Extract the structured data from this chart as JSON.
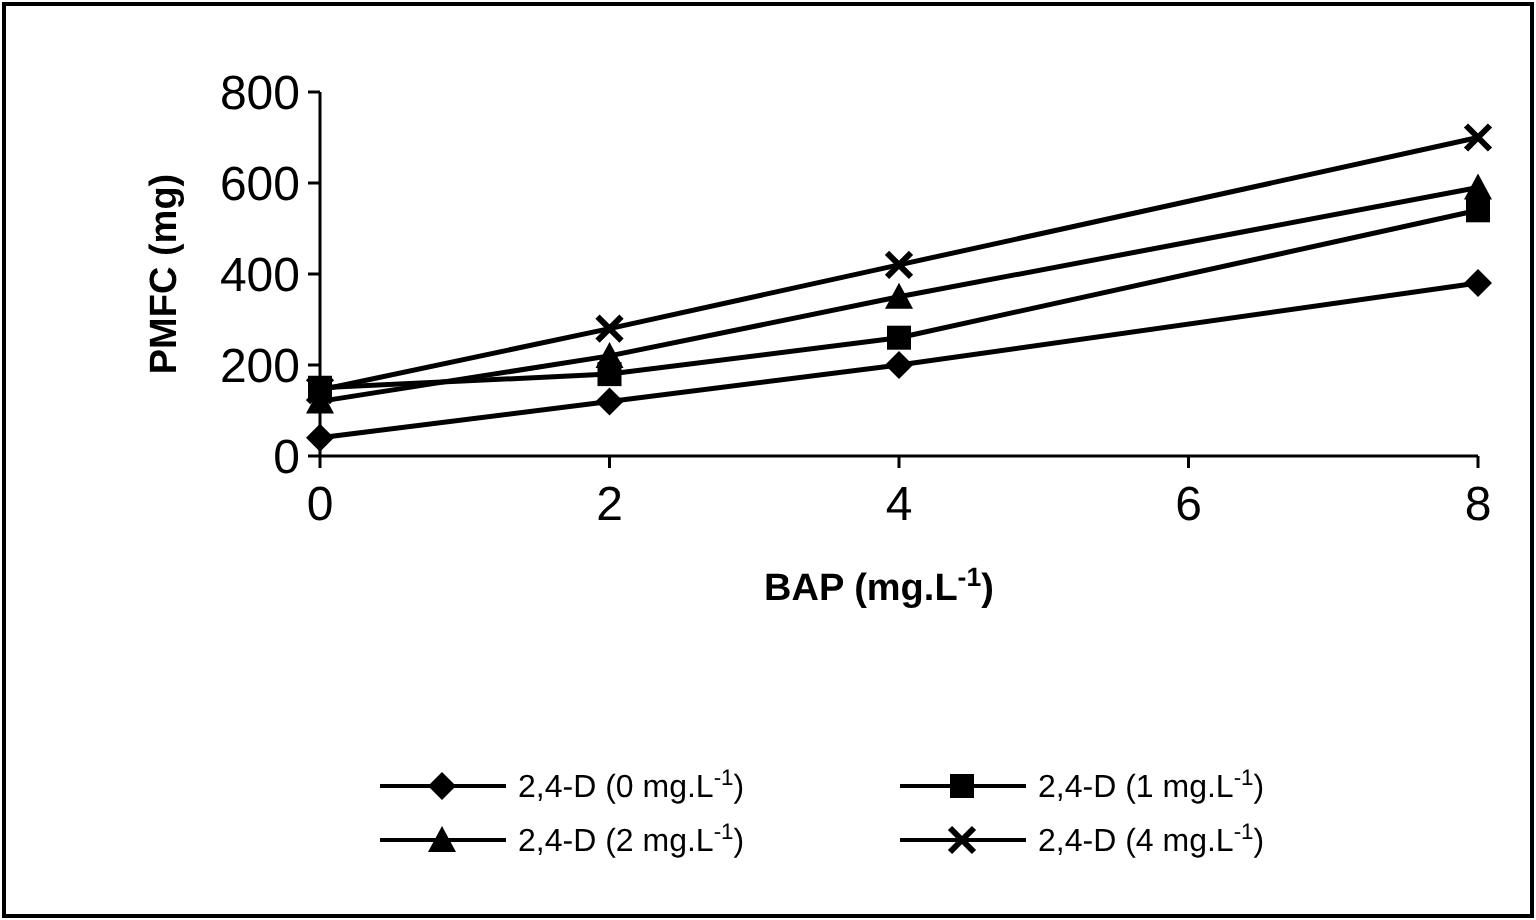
{
  "chart_data": {
    "type": "line",
    "xlabel": "BAP (mg.L$^{-1}$)",
    "ylabel": "PMFC (mg)",
    "x": [
      0,
      2,
      4,
      8
    ],
    "xlim": [
      0,
      8
    ],
    "xticks": [
      0,
      2,
      4,
      6,
      8
    ],
    "ylim": [
      0,
      800
    ],
    "yticks": [
      0,
      200,
      400,
      600,
      800
    ],
    "grid": false,
    "legend": "bottom",
    "line_style": "solid",
    "series": [
      {
        "name": "2,4-D (0 mg.L$^{-1}$)",
        "color": "#000000",
        "marker": "diamond",
        "values": [
          40,
          120,
          200,
          380
        ]
      },
      {
        "name": "2,4-D (1 mg.L$^{-1}$)",
        "color": "#000000",
        "marker": "square",
        "values": [
          150,
          180,
          260,
          540
        ]
      },
      {
        "name": "2,4-D (2 mg.L$^{-1}$)",
        "color": "#000000",
        "marker": "triangle",
        "values": [
          120,
          220,
          350,
          590
        ]
      },
      {
        "name": "2,4-D (4 mg.L$^{-1}$)",
        "color": "#000000",
        "marker": "cross",
        "values": [
          145,
          280,
          420,
          700
        ]
      }
    ]
  }
}
